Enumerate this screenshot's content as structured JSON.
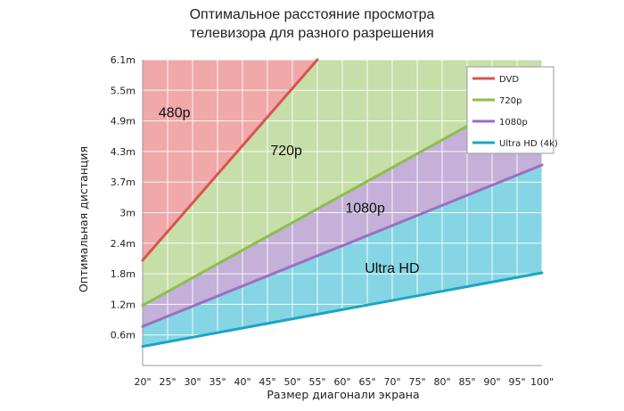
{
  "chart_data": {
    "type": "line",
    "title_lines": [
      "Оптимальное расстояние просмотра",
      "телевизора для разного разрешения"
    ],
    "xlabel": "Размер диагонали экрана",
    "ylabel": "Оптимальная дистанция",
    "x_ticks": [
      "20\"",
      "25\"",
      "30\"",
      "35\"",
      "40\"",
      "45\"",
      "50\"",
      "55\"",
      "60\"",
      "65\"",
      "70\"",
      "75\"",
      "80\"",
      "85\"",
      "90\"",
      "95\"",
      "100\""
    ],
    "y_ticks": [
      "0.6m",
      "1.2m",
      "1.8m",
      "2.4m",
      "3m",
      "3.7m",
      "4.3m",
      "4.9m",
      "5.5m",
      "6.1m"
    ],
    "xlim": [
      20,
      100
    ],
    "ylim": [
      0,
      6.1
    ],
    "grid": true,
    "legend_position": "top-right",
    "series": [
      {
        "name": "DVD",
        "color": "#d9534f",
        "x": [
          20,
          55
        ],
        "y": [
          2.1,
          6.1
        ]
      },
      {
        "name": "720p",
        "color": "#8cbf4a",
        "x": [
          20,
          100
        ],
        "y": [
          1.2,
          5.6
        ]
      },
      {
        "name": "1080p",
        "color": "#9b6fc0",
        "x": [
          20,
          100
        ],
        "y": [
          0.78,
          4.0
        ]
      },
      {
        "name": "Ultra HD (4k)",
        "color": "#1aa6c4",
        "x": [
          20,
          100
        ],
        "y": [
          0.38,
          1.85
        ]
      }
    ],
    "region_labels": [
      {
        "text": "480p",
        "x": 23.2,
        "y": 4.95,
        "fill": "#f0a8a8"
      },
      {
        "text": "720p",
        "x": 45.6,
        "y": 4.2,
        "fill": "#c6dea8"
      },
      {
        "text": "1080p",
        "x": 60.6,
        "y": 3.05,
        "fill": "#c4b0d8"
      },
      {
        "text": "Ultra HD",
        "x": 64.5,
        "y": 1.85,
        "fill": "#86d5e4"
      }
    ]
  }
}
